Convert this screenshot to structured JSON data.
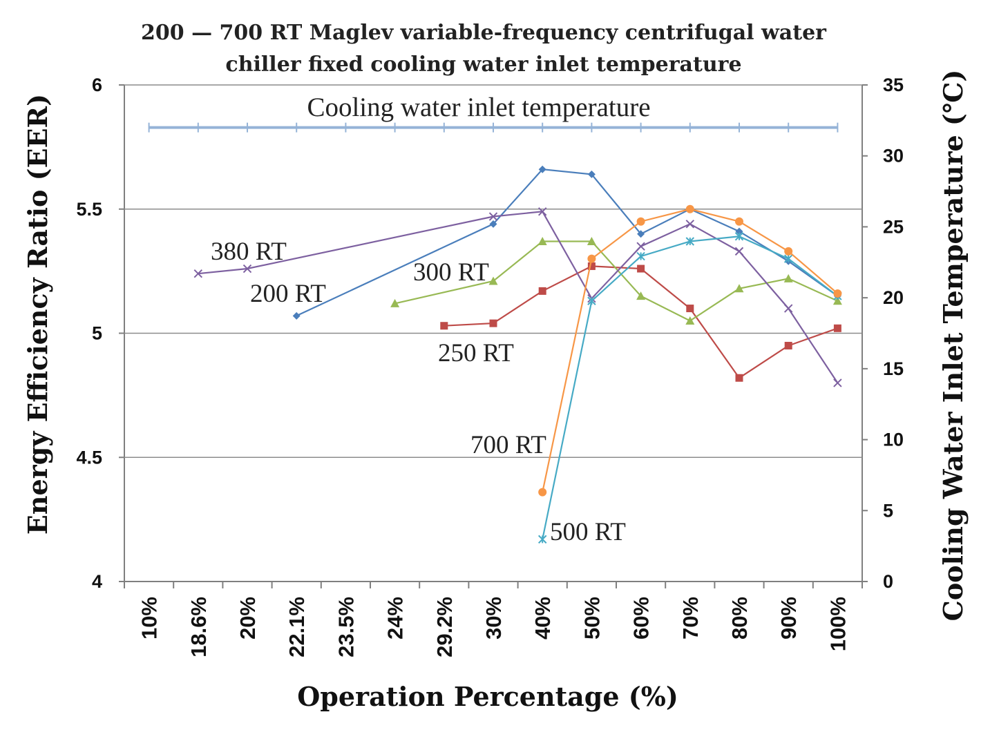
{
  "chart_data": {
    "type": "line",
    "title_lines": [
      "200 — 700 RT Maglev variable-frequency centrifugal water",
      "chiller fixed cooling water inlet temperature"
    ],
    "xlabel": "Operation Percentage (%)",
    "ylabel": "Energy Efficiency Ratio (EER)",
    "y2label": "Cooling Water Inlet Temperature (℃)",
    "categories": [
      "10%",
      "18.6%",
      "20%",
      "22.1%",
      "23.5%",
      "24%",
      "29.2%",
      "30%",
      "40%",
      "50%",
      "60%",
      "70%",
      "80%",
      "90%",
      "100%"
    ],
    "ylim": [
      4,
      6
    ],
    "yticks": [
      "4",
      "4.5",
      "5",
      "5.5",
      "6"
    ],
    "y2lim": [
      0,
      35
    ],
    "y2ticks": [
      "0",
      "5",
      "10",
      "15",
      "20",
      "25",
      "30",
      "35"
    ],
    "grid": "horizontal",
    "series": [
      {
        "name": "200 RT",
        "color": "#4a7ebb",
        "marker": "diamond",
        "axis": "left",
        "values": [
          null,
          null,
          null,
          5.07,
          null,
          null,
          null,
          5.44,
          5.66,
          5.64,
          5.4,
          5.5,
          5.41,
          5.29,
          5.15
        ]
      },
      {
        "name": "250 RT",
        "color": "#be4b48",
        "marker": "square",
        "axis": "left",
        "values": [
          null,
          null,
          null,
          null,
          null,
          null,
          5.03,
          5.04,
          5.17,
          5.27,
          5.26,
          5.1,
          4.82,
          4.95,
          5.02
        ]
      },
      {
        "name": "300 RT",
        "color": "#98b954",
        "marker": "triangle",
        "axis": "left",
        "values": [
          null,
          null,
          null,
          null,
          null,
          5.12,
          null,
          5.21,
          5.37,
          5.37,
          5.15,
          5.05,
          5.18,
          5.22,
          5.13
        ]
      },
      {
        "name": "380 RT",
        "color": "#7d60a0",
        "marker": "x",
        "axis": "left",
        "values": [
          null,
          5.24,
          5.26,
          null,
          null,
          null,
          null,
          5.47,
          5.49,
          5.14,
          5.35,
          5.44,
          5.33,
          5.1,
          4.8
        ]
      },
      {
        "name": "500 RT",
        "color": "#46aac5",
        "marker": "star",
        "axis": "left",
        "values": [
          null,
          null,
          null,
          null,
          null,
          null,
          null,
          null,
          4.17,
          5.13,
          5.31,
          5.37,
          5.39,
          5.3,
          5.15
        ]
      },
      {
        "name": "700 RT",
        "color": "#f79646",
        "marker": "circle",
        "axis": "left",
        "values": [
          null,
          null,
          null,
          null,
          null,
          null,
          null,
          null,
          4.36,
          5.3,
          5.45,
          5.5,
          5.45,
          5.33,
          5.16
        ]
      },
      {
        "name": "Cooling water inlet temperature",
        "color": "#95b3d7",
        "marker": "plus",
        "axis": "right",
        "values": [
          32,
          32,
          32,
          32,
          32,
          32,
          32,
          32,
          32,
          32,
          32,
          32,
          32,
          32,
          32
        ]
      }
    ],
    "annotations": [
      {
        "text": "Cooling water inlet temperature",
        "series": "Cooling water inlet temperature"
      },
      {
        "text": "380 RT",
        "series": "380 RT"
      },
      {
        "text": "200 RT",
        "series": "200 RT"
      },
      {
        "text": "300 RT",
        "series": "300 RT"
      },
      {
        "text": "250 RT",
        "series": "250 RT"
      },
      {
        "text": "700 RT",
        "series": "700 RT"
      },
      {
        "text": "500 RT",
        "series": "500 RT"
      }
    ]
  }
}
